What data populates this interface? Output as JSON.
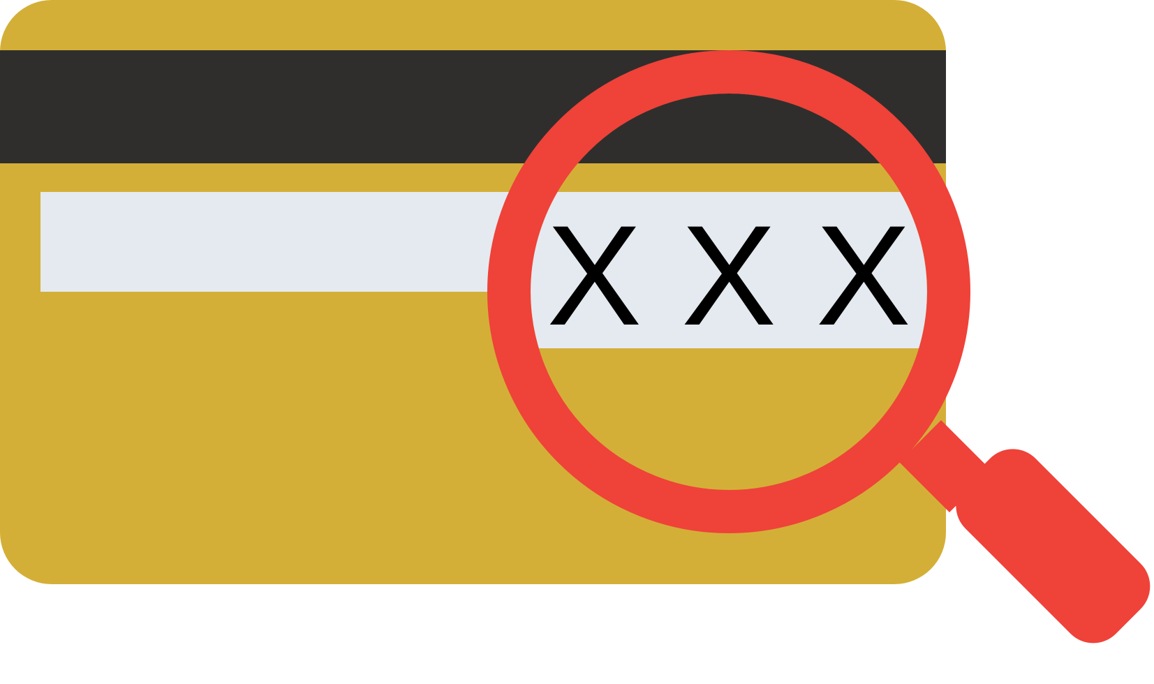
{
  "illustration": {
    "cvv_code": "X X X",
    "colors": {
      "card_body": "#D4AF37",
      "magnetic_stripe": "#2F2E2C",
      "signature_panel": "#E4EAF0",
      "magnifier": "#EF4239",
      "code_text": "#000000",
      "background": "#FFFFFF"
    },
    "icons": {
      "card": "credit-card-back-icon",
      "magnifier": "magnifying-glass-icon"
    }
  }
}
